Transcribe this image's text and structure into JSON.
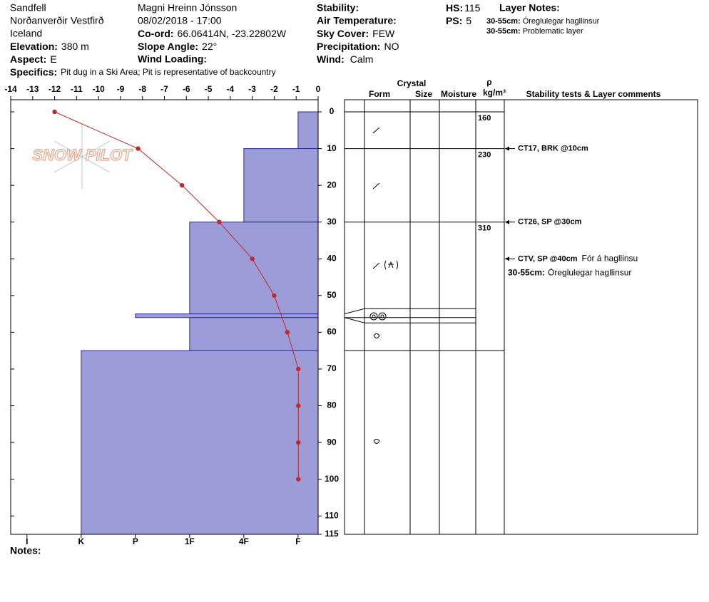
{
  "header": {
    "location": "Sandfell",
    "region": "Norðanverðir Vestfirð",
    "country": "Iceland",
    "elevation": {
      "label": "Elevation:",
      "value": "380 m"
    },
    "aspect": {
      "label": "Aspect:",
      "value": "E"
    },
    "specifics": {
      "label": "Specifics:",
      "value": "Pit dug in a Ski Area; Pit is representative of backcountry"
    },
    "observer": "Magni Hreinn Jónsson",
    "datetime": "08/02/2018 - 17:00",
    "coord": {
      "label": "Co-ord:",
      "value": "66.06414N, -23.22802W"
    },
    "slope": {
      "label": "Slope Angle:",
      "value": "22°"
    },
    "wind_loading": "Wind Loading:",
    "stability": "Stability:",
    "air_temperature": "Air Temperature:",
    "sky_cover": {
      "label": "Sky Cover:",
      "value": "FEW"
    },
    "precipitation": {
      "label": "Precipitation:",
      "value": "NO"
    },
    "wind": {
      "label": "Wind:",
      "value": "Calm"
    },
    "hs": {
      "label": "HS:",
      "value": "115"
    },
    "ps": {
      "label": "PS:",
      "value": "5"
    },
    "layer_notes_title": "Layer Notes:",
    "layer_notes": [
      {
        "range": "30-55cm:",
        "text": "Óreglulegar hagllinsur"
      },
      {
        "range": "30-55cm:",
        "text": "Problematic layer"
      }
    ]
  },
  "watermark": "SNOW PILOT",
  "footer": {
    "notes": "Notes:"
  },
  "chart_data": {
    "type": "snow-profile",
    "temperature": {
      "color": "#c0282a",
      "xlim": [
        -14,
        0
      ],
      "xticks": [
        -14,
        -13,
        -12,
        -11,
        -10,
        -9,
        -8,
        -7,
        -6,
        -5,
        -4,
        -3,
        -2,
        -1,
        0
      ],
      "depth": [
        0,
        10,
        20,
        30,
        40,
        50,
        60,
        70,
        80,
        90,
        100
      ],
      "values": [
        -12,
        -8.2,
        -6.2,
        -4.5,
        -3,
        -2,
        -1.4,
        -0.9,
        -0.9,
        -0.9,
        -0.9
      ]
    },
    "depth_axis": {
      "ylim": [
        -3.3,
        115
      ],
      "yticks": [
        0,
        10,
        20,
        30,
        40,
        50,
        60,
        70,
        80,
        90,
        100,
        110,
        115
      ]
    },
    "hardness": {
      "color": "#9c9cd8",
      "xlim": [
        6.3,
        0.63
      ],
      "xticks": [
        {
          "value": 6,
          "label": "I"
        },
        {
          "value": 5,
          "label": "K"
        },
        {
          "value": 4,
          "label": "P"
        },
        {
          "value": 3,
          "label": "1F"
        },
        {
          "value": 2,
          "label": "4F"
        },
        {
          "value": 1,
          "label": "F"
        }
      ]
    },
    "layers": [
      {
        "top": 0,
        "bottom": 10,
        "hardness": 1
      },
      {
        "top": 10,
        "bottom": 30,
        "hardness": 2
      },
      {
        "top": 30,
        "bottom": 55,
        "hardness": 3
      },
      {
        "top": 55,
        "bottom": 56,
        "hardness": 4
      },
      {
        "top": 56,
        "bottom": 65,
        "hardness": 3
      },
      {
        "top": 65,
        "bottom": 115,
        "hardness": 5
      }
    ],
    "table_headers": {
      "crystal": "Crystal",
      "form": "Form",
      "size": "Size",
      "moisture": "Moisture",
      "rho": "ρ",
      "density_unit": "kg/m³",
      "comments": "Stability tests & Layer comments"
    },
    "density": [
      {
        "depth": 0,
        "value": 160
      },
      {
        "depth": 10,
        "value": 230
      },
      {
        "depth": 30,
        "value": 310
      }
    ],
    "stability_tests": [
      {
        "depth": 10,
        "test": "CT17, BRK @10cm"
      },
      {
        "depth": 30,
        "test": "CT26, SP @30cm"
      },
      {
        "depth": 40,
        "test": "CTV, SP @40cm",
        "comment": "Fór á hagllinsu"
      }
    ],
    "layer_comments": [
      {
        "range": "30-55cm:",
        "text": "Óreglulegar hagllinsur"
      }
    ]
  }
}
